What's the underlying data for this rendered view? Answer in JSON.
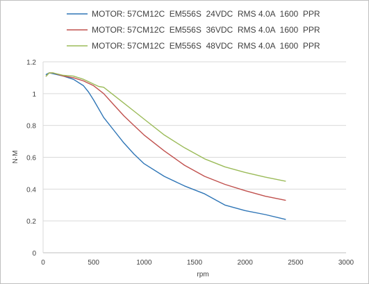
{
  "chart_data": {
    "type": "line",
    "xlabel": "rpm",
    "ylabel": "N·M",
    "xlim": [
      0,
      3000
    ],
    "ylim": [
      0,
      1.2
    ],
    "x_ticks": [
      0,
      500,
      1000,
      1500,
      2000,
      2500,
      3000
    ],
    "y_ticks": [
      0,
      0.2,
      0.4,
      0.6,
      0.8,
      1,
      1.2
    ],
    "y_tick_labels": [
      "0",
      "0.2",
      "0.4",
      "0.6",
      "0.8",
      "1",
      "1.2"
    ],
    "grid": {
      "horizontal": true,
      "vertical": false
    },
    "legend_position": "top",
    "series": [
      {
        "name": "MOTOR: 57CM12C  EM556S  24VDC  RMS 4.0A  1600  PPR",
        "color": "#2e75b6",
        "x": [
          30,
          60,
          100,
          200,
          300,
          400,
          450,
          500,
          600,
          700,
          800,
          900,
          1000,
          1200,
          1400,
          1600,
          1800,
          2000,
          2200,
          2400
        ],
        "y": [
          1.12,
          1.13,
          1.125,
          1.11,
          1.09,
          1.05,
          1.01,
          0.96,
          0.85,
          0.77,
          0.69,
          0.62,
          0.56,
          0.48,
          0.42,
          0.37,
          0.3,
          0.265,
          0.24,
          0.21
        ]
      },
      {
        "name": "MOTOR: 57CM12C  EM556S  36VDC  RMS 4.0A  1600  PPR",
        "color": "#c0504d",
        "x": [
          30,
          60,
          100,
          200,
          300,
          400,
          500,
          600,
          700,
          800,
          900,
          1000,
          1200,
          1400,
          1600,
          1800,
          2000,
          2200,
          2400
        ],
        "y": [
          1.11,
          1.13,
          1.13,
          1.11,
          1.1,
          1.08,
          1.05,
          1.0,
          0.93,
          0.86,
          0.8,
          0.74,
          0.64,
          0.55,
          0.48,
          0.43,
          0.39,
          0.355,
          0.33
        ]
      },
      {
        "name": "MOTOR: 57CM12C  EM556S  48VDC  RMS 4.0A  1600  PPR",
        "color": "#9bbb59",
        "x": [
          30,
          60,
          100,
          200,
          300,
          400,
          500,
          550,
          600,
          700,
          800,
          900,
          1000,
          1200,
          1400,
          1600,
          1800,
          2000,
          2200,
          2400
        ],
        "y": [
          1.11,
          1.13,
          1.13,
          1.115,
          1.11,
          1.09,
          1.06,
          1.045,
          1.04,
          0.99,
          0.94,
          0.89,
          0.84,
          0.74,
          0.66,
          0.59,
          0.54,
          0.505,
          0.475,
          0.45
        ]
      }
    ]
  }
}
